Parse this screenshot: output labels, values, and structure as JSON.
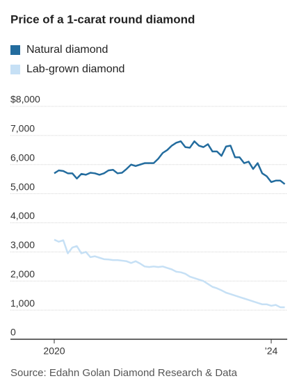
{
  "chart_data": {
    "type": "line",
    "title": "Price of a 1-carat round diamond",
    "source": "Source: Edahn Golan Diamond Research & Data",
    "categories": [
      "2020",
      null,
      null,
      null,
      null,
      null,
      null,
      null,
      null,
      null,
      null,
      null,
      null,
      null,
      null,
      null,
      null,
      null,
      null,
      null,
      null,
      null,
      null,
      null,
      null,
      null,
      null,
      null,
      null,
      null,
      null,
      null,
      null,
      null,
      null,
      null,
      null,
      null,
      null,
      null,
      null,
      null,
      null,
      null,
      null,
      null,
      null,
      null,
      "’24",
      null,
      null,
      null
    ],
    "series": [
      {
        "name": "Natural diamond",
        "color": "#236c9e",
        "values": [
          5700,
          5800,
          5780,
          5700,
          5700,
          5520,
          5680,
          5650,
          5720,
          5700,
          5650,
          5700,
          5800,
          5820,
          5700,
          5720,
          5850,
          6000,
          5950,
          6000,
          6050,
          6050,
          6050,
          6200,
          6400,
          6500,
          6650,
          6750,
          6800,
          6600,
          6580,
          6800,
          6650,
          6600,
          6700,
          6450,
          6450,
          6300,
          6620,
          6650,
          6250,
          6250,
          6050,
          6100,
          5850,
          6050,
          5700,
          5600,
          5400,
          5450,
          5450,
          5330
        ]
      },
      {
        "name": "Lab-grown diamond",
        "color": "#c6e0f5",
        "values": [
          3420,
          3350,
          3400,
          2950,
          3150,
          3200,
          2950,
          3000,
          2820,
          2850,
          2800,
          2750,
          2740,
          2720,
          2720,
          2700,
          2680,
          2620,
          2680,
          2600,
          2500,
          2480,
          2500,
          2480,
          2500,
          2450,
          2400,
          2320,
          2300,
          2250,
          2150,
          2100,
          2050,
          2000,
          1900,
          1800,
          1750,
          1680,
          1600,
          1550,
          1500,
          1450,
          1400,
          1350,
          1300,
          1250,
          1200,
          1200,
          1150,
          1180,
          1100,
          1100
        ]
      }
    ],
    "ylim": [
      0,
      8000
    ],
    "yticks": [
      0,
      {
        "value": 1000,
        "label": "1,000"
      },
      {
        "value": 2000,
        "label": "2,000"
      },
      {
        "value": 3000,
        "label": "3,000"
      },
      {
        "value": 4000,
        "label": "4,000"
      },
      {
        "value": 5000,
        "label": "5,000"
      },
      {
        "value": 6000,
        "label": "6,000"
      },
      {
        "value": 7000,
        "label": "7,000"
      },
      {
        "value": 8000,
        "label": "$8,000"
      }
    ],
    "grid": true
  }
}
